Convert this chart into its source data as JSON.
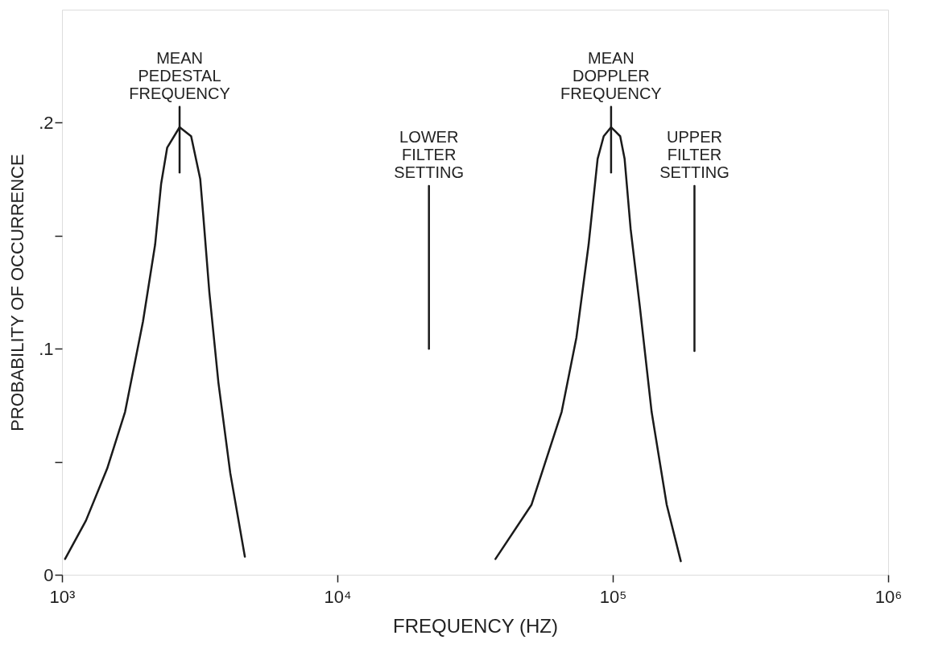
{
  "chart_data": {
    "type": "line",
    "xlabel": "FREQUENCY (HZ)",
    "ylabel": "PROBABILITY OF OCCURRENCE",
    "log": "x",
    "grid": false,
    "legend": false,
    "marker": "none",
    "line_style": "solid",
    "xlim": [
      1000,
      1000000
    ],
    "ylim": [
      0,
      0.25
    ],
    "xticks": [
      {
        "value": 1000,
        "label": "10³"
      },
      {
        "value": 10000,
        "label": "10⁴"
      },
      {
        "value": 100000,
        "label": "10⁵"
      },
      {
        "value": 1000000,
        "label": "10⁶"
      }
    ],
    "yticks": [
      {
        "value": 0,
        "label": "0"
      },
      {
        "value": 0.05,
        "label": null
      },
      {
        "value": 0.1,
        "label": ".1"
      },
      {
        "value": 0.15,
        "label": null
      },
      {
        "value": 0.2,
        "label": ".2"
      }
    ],
    "series": [
      {
        "color": "#1a1a1a",
        "x": [
          1026,
          1222,
          1459,
          1694,
          1968,
          2178,
          2291,
          2410,
          2673,
          2944,
          3177,
          3258,
          3428,
          3698,
          4083,
          4613
        ],
        "values": [
          0.007,
          0.024,
          0.047,
          0.072,
          0.112,
          0.146,
          0.173,
          0.189,
          0.198,
          0.194,
          0.175,
          0.159,
          0.125,
          0.085,
          0.045,
          0.008
        ]
      },
      {
        "color": "#1a1a1a",
        "x": [
          37500,
          50700,
          65200,
          73800,
          81700,
          88100,
          92700,
          98600,
          106400,
          110400,
          116100,
          125300,
          138400,
          157000,
          176600
        ],
        "values": [
          0.007,
          0.031,
          0.072,
          0.105,
          0.146,
          0.184,
          0.194,
          0.198,
          0.194,
          0.184,
          0.153,
          0.119,
          0.072,
          0.031,
          0.006
        ]
      },
      {
        "color": "#1a1a1a",
        "x": [
          2673,
          2673
        ],
        "values": [
          0.178,
          0.207
        ]
      },
      {
        "color": "#1a1a1a",
        "x": [
          98600,
          98600
        ],
        "values": [
          0.178,
          0.207
        ]
      },
      {
        "color": "#1a1a1a",
        "x": [
          21500,
          21500
        ],
        "values": [
          0.1,
          0.172
        ]
      },
      {
        "color": "#1a1a1a",
        "x": [
          198000,
          198000
        ],
        "values": [
          0.099,
          0.172
        ]
      }
    ],
    "annotations": [
      {
        "text": "MEAN\nPEDESTAL\nFREQUENCY",
        "x": 2673,
        "y": 0.207
      },
      {
        "text": "MEAN\nDOPPLER\nFREQUENCY",
        "x": 98600,
        "y": 0.207
      },
      {
        "text": "LOWER\nFILTER\nSETTING",
        "x": 21500,
        "y": 0.172
      },
      {
        "text": "UPPER\nFILTER\nSETTING",
        "x": 198000,
        "y": 0.172
      }
    ]
  }
}
